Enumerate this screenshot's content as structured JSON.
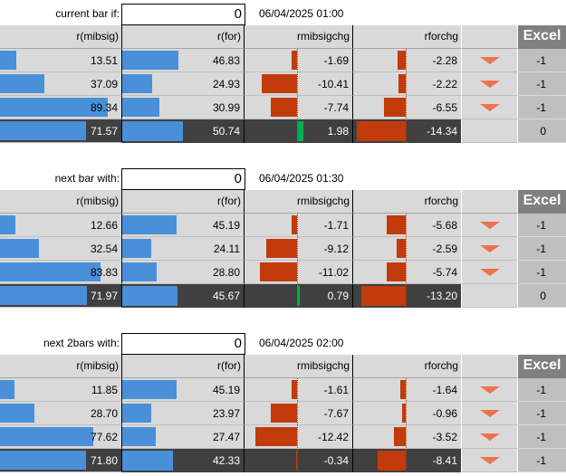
{
  "blocks": [
    {
      "label": "current bar if:",
      "input": "0",
      "datetime": "06/04/2025 01:00",
      "headers": [
        "r(mibsig)",
        "r(for)",
        "rmibsigchg",
        "rforchg"
      ],
      "excel_label": "Excel",
      "rows": [
        {
          "mibsig": "13.51",
          "mibsig_v": 13.51,
          "for": "46.83",
          "for_v": 46.83,
          "rmibsigchg": "-1.69",
          "rmibsigchg_v": -1.69,
          "rforchg": "-2.28",
          "rforchg_v": -2.28,
          "arrow": true,
          "excel": "-1"
        },
        {
          "mibsig": "37.09",
          "mibsig_v": 37.09,
          "for": "24.93",
          "for_v": 24.93,
          "rmibsigchg": "-10.41",
          "rmibsigchg_v": -10.41,
          "rforchg": "-2.22",
          "rforchg_v": -2.22,
          "arrow": true,
          "excel": "-1"
        },
        {
          "mibsig": "89.34",
          "mibsig_v": 89.34,
          "for": "30.99",
          "for_v": 30.99,
          "rmibsigchg": "-7.74",
          "rmibsigchg_v": -7.74,
          "rforchg": "-6.55",
          "rforchg_v": -6.55,
          "arrow": true,
          "excel": "-1"
        },
        {
          "mibsig": "71.57",
          "mibsig_v": 71.57,
          "for": "50.74",
          "for_v": 50.74,
          "rmibsigchg": "1.98",
          "rmibsigchg_v": 1.98,
          "rforchg": "-14.34",
          "rforchg_v": -14.34,
          "arrow": false,
          "excel": "0",
          "summary": true
        }
      ]
    },
    {
      "label": "next bar with:",
      "input": "0",
      "datetime": "06/04/2025 01:30",
      "headers": [
        "r(mibsig)",
        "r(for)",
        "rmibsigchg",
        "rforchg"
      ],
      "excel_label": "Excel",
      "rows": [
        {
          "mibsig": "12.66",
          "mibsig_v": 12.66,
          "for": "45.19",
          "for_v": 45.19,
          "rmibsigchg": "-1.71",
          "rmibsigchg_v": -1.71,
          "rforchg": "-5.68",
          "rforchg_v": -5.68,
          "arrow": true,
          "excel": "-1"
        },
        {
          "mibsig": "32.54",
          "mibsig_v": 32.54,
          "for": "24.11",
          "for_v": 24.11,
          "rmibsigchg": "-9.12",
          "rmibsigchg_v": -9.12,
          "rforchg": "-2.59",
          "rforchg_v": -2.59,
          "arrow": true,
          "excel": "-1"
        },
        {
          "mibsig": "83.83",
          "mibsig_v": 83.83,
          "for": "28.80",
          "for_v": 28.8,
          "rmibsigchg": "-11.02",
          "rmibsigchg_v": -11.02,
          "rforchg": "-5.74",
          "rforchg_v": -5.74,
          "arrow": true,
          "excel": "-1"
        },
        {
          "mibsig": "71.97",
          "mibsig_v": 71.97,
          "for": "45.67",
          "for_v": 45.67,
          "rmibsigchg": "0.79",
          "rmibsigchg_v": 0.79,
          "rforchg": "-13.20",
          "rforchg_v": -13.2,
          "arrow": false,
          "excel": "0",
          "summary": true
        }
      ]
    },
    {
      "label": "next 2bars with:",
      "input": "0",
      "datetime": "06/04/2025 02:00",
      "headers": [
        "r(mibsig)",
        "r(for)",
        "rmibsigchg",
        "rforchg"
      ],
      "excel_label": "Excel",
      "rows": [
        {
          "mibsig": "11.85",
          "mibsig_v": 11.85,
          "for": "45.19",
          "for_v": 45.19,
          "rmibsigchg": "-1.61",
          "rmibsigchg_v": -1.61,
          "rforchg": "-1.64",
          "rforchg_v": -1.64,
          "arrow": true,
          "excel": "-1"
        },
        {
          "mibsig": "28.70",
          "mibsig_v": 28.7,
          "for": "23.97",
          "for_v": 23.97,
          "rmibsigchg": "-7.67",
          "rmibsigchg_v": -7.67,
          "rforchg": "-0.96",
          "rforchg_v": -0.96,
          "arrow": true,
          "excel": "-1"
        },
        {
          "mibsig": "77.62",
          "mibsig_v": 77.62,
          "for": "27.47",
          "for_v": 27.47,
          "rmibsigchg": "-12.42",
          "rmibsigchg_v": -12.42,
          "rforchg": "-3.52",
          "rforchg_v": -3.52,
          "arrow": true,
          "excel": "-1"
        },
        {
          "mibsig": "71.80",
          "mibsig_v": 71.8,
          "for": "42.33",
          "for_v": 42.33,
          "rmibsigchg": "-0.34",
          "rmibsigchg_v": -0.34,
          "rforchg": "-8.41",
          "rforchg_v": -8.41,
          "arrow": true,
          "excel": "-1",
          "summary": true
        }
      ]
    }
  ],
  "colors": {
    "blue_bar": "#4a90d9",
    "red_bar": "#c23b0b",
    "green_bar": "#00b050",
    "arrow": "#ee7150",
    "grid": "#d9d9d9",
    "dark_row": "#404040",
    "excel_header": "#808080"
  }
}
